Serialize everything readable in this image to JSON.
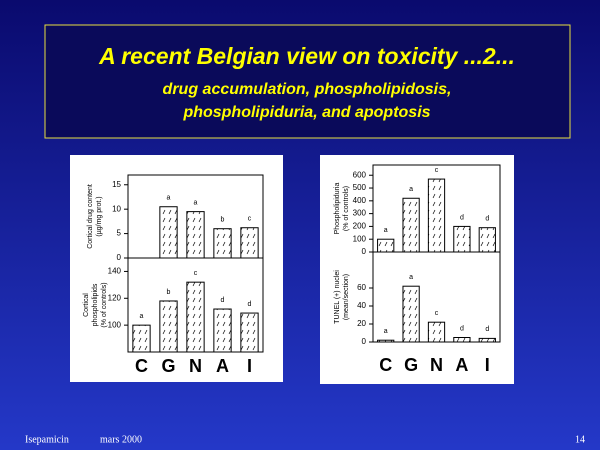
{
  "slide": {
    "title": "A recent Belgian view on toxicity ...2...",
    "subtitle": [
      "drug accumulation, phospholipidosis,",
      "phospholipiduria, and apoptosis"
    ],
    "footer": {
      "left": "Isepamicin",
      "middle": "mars 2000",
      "right": "14"
    }
  },
  "chart_data": [
    {
      "type": "bar",
      "categories": [
        "C",
        "G",
        "N",
        "A",
        "I"
      ],
      "panels": [
        {
          "ylabel": [
            "Cortical drug content",
            "(µg/mg prot.)"
          ],
          "ylim": [
            0,
            17
          ],
          "yticks": [
            0,
            5,
            10,
            15
          ],
          "values": [
            0,
            10.5,
            9.5,
            6,
            6.2
          ],
          "letters": [
            null,
            "a",
            "a",
            "b",
            "c"
          ]
        },
        {
          "ylabel": [
            "Cortical",
            "phospholipids",
            "(% of controls)"
          ],
          "ylim": [
            80,
            150
          ],
          "yticks": [
            100,
            120,
            140
          ],
          "values": [
            100,
            118,
            132,
            112,
            109
          ],
          "letters": [
            "a",
            "b",
            "c",
            "d",
            "d"
          ]
        }
      ]
    },
    {
      "type": "bar",
      "categories": [
        "C",
        "G",
        "N",
        "A",
        "I"
      ],
      "panels": [
        {
          "ylabel": [
            "Phospholipiduria",
            "(% of controls)"
          ],
          "ylim": [
            0,
            680
          ],
          "yticks": [
            0,
            100,
            200,
            300,
            400,
            500,
            600
          ],
          "values": [
            100,
            420,
            570,
            200,
            190
          ],
          "letters": [
            "a",
            "a",
            "c",
            "d",
            "d"
          ]
        },
        {
          "ylabel": [
            "TUNEL (+) nuclei",
            "(mean/section)"
          ],
          "ylim": [
            0,
            100
          ],
          "yticks": [
            0,
            20,
            40,
            60
          ],
          "values": [
            2,
            62,
            22,
            5,
            4
          ],
          "letters": [
            "a",
            "a",
            "c",
            "d",
            "d"
          ]
        }
      ]
    }
  ]
}
